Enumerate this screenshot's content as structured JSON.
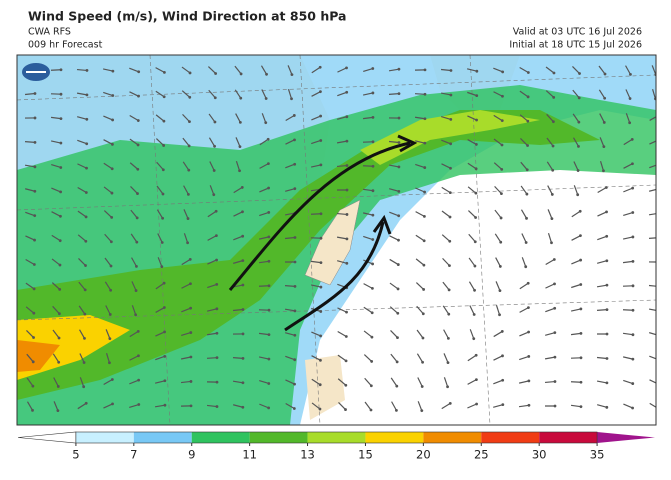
{
  "header": {
    "title": "Wind Speed (m/s), Wind Direction at 850 hPa",
    "model": "CWA RFS",
    "forecast": "009 hr Forecast",
    "valid": "Valid at 03 UTC 16 Jul 2026",
    "initial": "Initial at 18 UTC 15 Jul 2026"
  },
  "colorbar": {
    "ticks": [
      5,
      7,
      9,
      11,
      13,
      15,
      20,
      25,
      30,
      35
    ],
    "colors": [
      "#ffffff",
      "#c8f0ff",
      "#78c8f5",
      "#2fc35f",
      "#52b82a",
      "#a8dc2a",
      "#fad200",
      "#f08c00",
      "#f03c14",
      "#c80a3c",
      "#a0148c"
    ]
  }
}
